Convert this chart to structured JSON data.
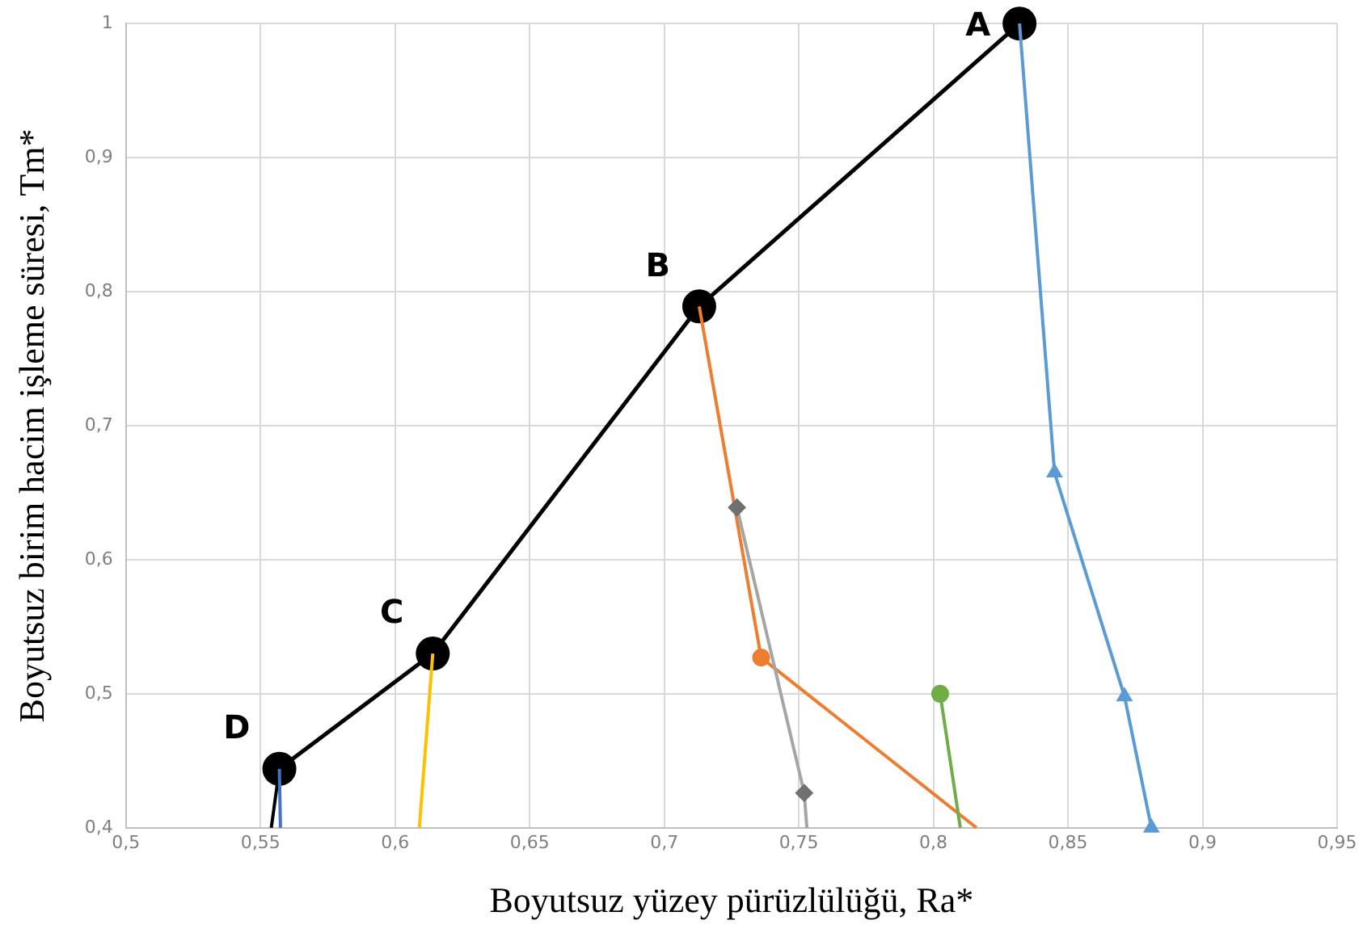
{
  "chart_data": {
    "type": "line",
    "xlabel": "Boyutsuz yüzey pürüzlülüğü, Ra*",
    "ylabel": "Boyutsuz birim hacim işleme süresi, Tm*",
    "xlim": [
      0.5,
      0.95
    ],
    "ylim": [
      0.4,
      1
    ],
    "xticks": [
      {
        "value": 0.5,
        "label": "0,5"
      },
      {
        "value": 0.55,
        "label": "0,55"
      },
      {
        "value": 0.6,
        "label": "0,6"
      },
      {
        "value": 0.65,
        "label": "0,65"
      },
      {
        "value": 0.7,
        "label": "0,7"
      },
      {
        "value": 0.75,
        "label": "0,75"
      },
      {
        "value": 0.8,
        "label": "0,8"
      },
      {
        "value": 0.85,
        "label": "0,85"
      },
      {
        "value": 0.9,
        "label": "0,9"
      },
      {
        "value": 0.95,
        "label": "0,95"
      }
    ],
    "yticks": [
      {
        "value": 0.4,
        "label": "0,4"
      },
      {
        "value": 0.5,
        "label": "0,5"
      },
      {
        "value": 0.6,
        "label": "0,6"
      },
      {
        "value": 0.7,
        "label": "0,7"
      },
      {
        "value": 0.8,
        "label": "0,8"
      },
      {
        "value": 0.9,
        "label": "0,9"
      },
      1
    ],
    "grid": true,
    "legend": false,
    "series": [
      {
        "color": "#000000",
        "marker": "circle",
        "x": [
          0.557,
          0.614,
          0.713,
          0.832
        ],
        "values": [
          0.444,
          0.53,
          0.789,
          1
        ]
      },
      {
        "color": "#000000",
        "marker": "none",
        "x": [
          0.554,
          0.557
        ],
        "values": [
          0.4,
          0.444
        ]
      },
      {
        "color": "#5b9bd5",
        "marker": "none",
        "x": [
          0.832,
          0.845,
          0.871,
          0.881
        ],
        "values": [
          1,
          0.665,
          0.498,
          0.4
        ]
      },
      {
        "type": "scatter",
        "color": "#5b9bd5",
        "marker": "triangle",
        "x": [
          0.845,
          0.871,
          0.881
        ],
        "values": [
          0.665,
          0.498,
          0.4
        ]
      },
      {
        "color": "#ed7d31",
        "marker": "none",
        "x": [
          0.713,
          0.736,
          0.816
        ],
        "values": [
          0.789,
          0.527,
          0.4
        ]
      },
      {
        "type": "scatter",
        "color": "#ed7d31",
        "marker": "circle",
        "x": [
          0.736
        ],
        "values": [
          0.527
        ]
      },
      {
        "color": "#a5a5a5",
        "marker": "none",
        "x": [
          0.727,
          0.752,
          0.753
        ],
        "values": [
          0.639,
          0.426,
          0.4
        ]
      },
      {
        "type": "scatter",
        "color": "#707070",
        "marker": "diamond",
        "x": [
          0.727,
          0.752
        ],
        "values": [
          0.639,
          0.426
        ]
      },
      {
        "color": "#70ad47",
        "marker": "none",
        "x": [
          0.8025,
          0.81
        ],
        "values": [
          0.5,
          0.4
        ]
      },
      {
        "type": "scatter",
        "color": "#70ad47",
        "marker": "circle",
        "x": [
          0.8025
        ],
        "values": [
          0.5
        ]
      },
      {
        "color": "#ffc000",
        "marker": "none",
        "x": [
          0.614,
          0.609
        ],
        "values": [
          0.53,
          0.4
        ]
      },
      {
        "color": "#4472c4",
        "marker": "none",
        "x": [
          0.557,
          0.5574
        ],
        "values": [
          0.444,
          0.4
        ]
      }
    ],
    "annotations": [
      {
        "text": "A",
        "x": 0.832,
        "y": 1
      },
      {
        "text": "B",
        "x": 0.713,
        "y": 0.789
      },
      {
        "text": "C",
        "x": 0.614,
        "y": 0.53
      },
      {
        "text": "D",
        "x": 0.557,
        "y": 0.444
      }
    ]
  }
}
